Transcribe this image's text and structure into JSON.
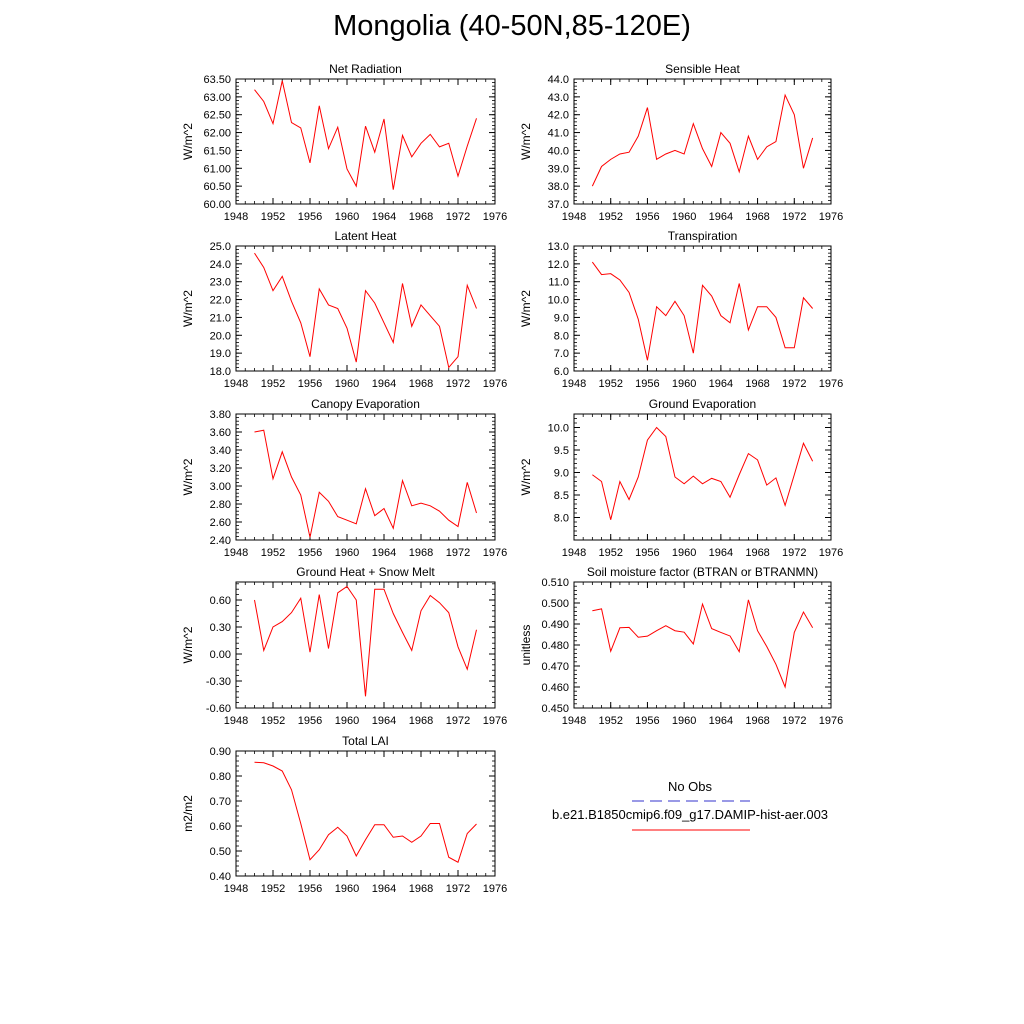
{
  "page_title": "Mongolia (40-50N,85-120E)",
  "legend": {
    "entries": [
      {
        "label": "No Obs",
        "color": "#3333cc",
        "dash": "dashed"
      },
      {
        "label": "b.e21.B1850cmip6.f09_g17.DAMIP-hist-aer.003",
        "color": "#ff0000",
        "dash": "solid"
      }
    ]
  },
  "chart_data": [
    {
      "type": "line",
      "title": "Net Radiation",
      "ylabel": "W/m^2",
      "xlim": [
        1948,
        1976
      ],
      "xticks": [
        1948,
        1952,
        1956,
        1960,
        1964,
        1968,
        1972,
        1976
      ],
      "xticklabels": [
        "1948",
        "1952",
        "1956",
        "1960",
        "1964",
        "1968",
        "1972",
        "1976"
      ],
      "ylim": [
        60.0,
        63.5
      ],
      "yticks": [
        60.0,
        60.5,
        61.0,
        61.5,
        62.0,
        62.5,
        63.0,
        63.5
      ],
      "yticklabels": [
        "60.00",
        "60.50",
        "61.00",
        "61.50",
        "62.00",
        "62.50",
        "63.00",
        "63.50"
      ],
      "x": [
        1950,
        1951,
        1952,
        1953,
        1954,
        1955,
        1956,
        1957,
        1958,
        1959,
        1960,
        1961,
        1962,
        1963,
        1964,
        1965,
        1966,
        1967,
        1968,
        1969,
        1970,
        1971,
        1972,
        1973,
        1974
      ],
      "series": [
        {
          "color": "#ff0000",
          "values": [
            63.2,
            62.87,
            62.25,
            63.45,
            62.28,
            62.13,
            61.15,
            62.75,
            61.55,
            62.15,
            60.98,
            60.5,
            62.18,
            61.45,
            62.38,
            60.4,
            61.92,
            61.32,
            61.7,
            61.95,
            61.6,
            61.7,
            60.78,
            61.62,
            62.4
          ]
        }
      ]
    },
    {
      "type": "line",
      "title": "Sensible Heat",
      "ylabel": "W/m^2",
      "xlim": [
        1948,
        1976
      ],
      "xticks": [
        1948,
        1952,
        1956,
        1960,
        1964,
        1968,
        1972,
        1976
      ],
      "xticklabels": [
        "1948",
        "1952",
        "1956",
        "1960",
        "1964",
        "1968",
        "1972",
        "1976"
      ],
      "ylim": [
        37.0,
        44.0
      ],
      "yticks": [
        37,
        38,
        39,
        40,
        41,
        42,
        43,
        44
      ],
      "yticklabels": [
        "37.0",
        "38.0",
        "39.0",
        "40.0",
        "41.0",
        "42.0",
        "43.0",
        "44.0"
      ],
      "x": [
        1950,
        1951,
        1952,
        1953,
        1954,
        1955,
        1956,
        1957,
        1958,
        1959,
        1960,
        1961,
        1962,
        1963,
        1964,
        1965,
        1966,
        1967,
        1968,
        1969,
        1970,
        1971,
        1972,
        1973,
        1974
      ],
      "series": [
        {
          "color": "#ff0000",
          "values": [
            38.0,
            39.1,
            39.5,
            39.8,
            39.9,
            40.8,
            42.4,
            39.5,
            39.8,
            40.0,
            39.8,
            41.5,
            40.1,
            39.1,
            41.0,
            40.4,
            38.8,
            40.8,
            39.5,
            40.2,
            40.5,
            43.1,
            42.0,
            39.0,
            40.7
          ]
        }
      ]
    },
    {
      "type": "line",
      "title": "Latent Heat",
      "ylabel": "W/m^2",
      "xlim": [
        1948,
        1976
      ],
      "xticks": [
        1948,
        1952,
        1956,
        1960,
        1964,
        1968,
        1972,
        1976
      ],
      "xticklabels": [
        "1948",
        "1952",
        "1956",
        "1960",
        "1964",
        "1968",
        "1972",
        "1976"
      ],
      "ylim": [
        18.0,
        25.0
      ],
      "yticks": [
        18,
        19,
        20,
        21,
        22,
        23,
        24,
        25
      ],
      "yticklabels": [
        "18.0",
        "19.0",
        "20.0",
        "21.0",
        "22.0",
        "23.0",
        "24.0",
        "25.0"
      ],
      "x": [
        1950,
        1951,
        1952,
        1953,
        1954,
        1955,
        1956,
        1957,
        1958,
        1959,
        1960,
        1961,
        1962,
        1963,
        1964,
        1965,
        1966,
        1967,
        1968,
        1969,
        1970,
        1971,
        1972,
        1973,
        1974
      ],
      "series": [
        {
          "color": "#ff0000",
          "values": [
            24.6,
            23.8,
            22.5,
            23.3,
            21.9,
            20.7,
            18.8,
            22.6,
            21.7,
            21.5,
            20.4,
            18.5,
            22.5,
            21.8,
            20.7,
            19.6,
            22.9,
            20.5,
            21.7,
            21.1,
            20.5,
            18.2,
            18.8,
            22.8,
            21.5
          ]
        }
      ]
    },
    {
      "type": "line",
      "title": "Transpiration",
      "ylabel": "W/m^2",
      "xlim": [
        1948,
        1976
      ],
      "xticks": [
        1948,
        1952,
        1956,
        1960,
        1964,
        1968,
        1972,
        1976
      ],
      "xticklabels": [
        "1948",
        "1952",
        "1956",
        "1960",
        "1964",
        "1968",
        "1972",
        "1976"
      ],
      "ylim": [
        6.0,
        13.0
      ],
      "yticks": [
        6,
        7,
        8,
        9,
        10,
        11,
        12,
        13
      ],
      "yticklabels": [
        "6.0",
        "7.0",
        "8.0",
        "9.0",
        "10.0",
        "11.0",
        "12.0",
        "13.0"
      ],
      "x": [
        1950,
        1951,
        1952,
        1953,
        1954,
        1955,
        1956,
        1957,
        1958,
        1959,
        1960,
        1961,
        1962,
        1963,
        1964,
        1965,
        1966,
        1967,
        1968,
        1969,
        1970,
        1971,
        1972,
        1973,
        1974
      ],
      "series": [
        {
          "color": "#ff0000",
          "values": [
            12.1,
            11.4,
            11.45,
            11.1,
            10.4,
            8.9,
            6.6,
            9.6,
            9.1,
            9.9,
            9.1,
            7.0,
            10.8,
            10.2,
            9.1,
            8.7,
            10.9,
            8.3,
            9.6,
            9.6,
            9.0,
            7.3,
            7.3,
            10.1,
            9.5
          ]
        }
      ]
    },
    {
      "type": "line",
      "title": "Canopy Evaporation",
      "ylabel": "W/m^2",
      "xlim": [
        1948,
        1976
      ],
      "xticks": [
        1948,
        1952,
        1956,
        1960,
        1964,
        1968,
        1972,
        1976
      ],
      "xticklabels": [
        "1948",
        "1952",
        "1956",
        "1960",
        "1964",
        "1968",
        "1972",
        "1976"
      ],
      "ylim": [
        2.4,
        3.8
      ],
      "yticks": [
        2.4,
        2.6,
        2.8,
        3.0,
        3.2,
        3.4,
        3.6,
        3.8
      ],
      "yticklabels": [
        "2.40",
        "2.60",
        "2.80",
        "3.00",
        "3.20",
        "3.40",
        "3.60",
        "3.80"
      ],
      "x": [
        1950,
        1951,
        1952,
        1953,
        1954,
        1955,
        1956,
        1957,
        1958,
        1959,
        1960,
        1961,
        1962,
        1963,
        1964,
        1965,
        1966,
        1967,
        1968,
        1969,
        1970,
        1971,
        1972,
        1973,
        1974
      ],
      "series": [
        {
          "color": "#ff0000",
          "values": [
            3.6,
            3.62,
            3.08,
            3.38,
            3.1,
            2.9,
            2.43,
            2.93,
            2.83,
            2.66,
            2.62,
            2.58,
            2.97,
            2.67,
            2.75,
            2.53,
            3.06,
            2.78,
            2.81,
            2.78,
            2.72,
            2.62,
            2.55,
            3.04,
            2.7
          ]
        }
      ]
    },
    {
      "type": "line",
      "title": "Ground Evaporation",
      "ylabel": "W/m^2",
      "xlim": [
        1948,
        1976
      ],
      "xticks": [
        1948,
        1952,
        1956,
        1960,
        1964,
        1968,
        1972,
        1976
      ],
      "xticklabels": [
        "1948",
        "1952",
        "1956",
        "1960",
        "1964",
        "1968",
        "1972",
        "1976"
      ],
      "ylim": [
        7.5,
        10.3
      ],
      "yticks": [
        8.0,
        8.5,
        9.0,
        9.5,
        10.0
      ],
      "yticklabels": [
        "8.0",
        "8.5",
        "9.0",
        "9.5",
        "10.0"
      ],
      "x": [
        1950,
        1951,
        1952,
        1953,
        1954,
        1955,
        1956,
        1957,
        1958,
        1959,
        1960,
        1961,
        1962,
        1963,
        1964,
        1965,
        1966,
        1967,
        1968,
        1969,
        1970,
        1971,
        1972,
        1973,
        1974
      ],
      "series": [
        {
          "color": "#ff0000",
          "values": [
            8.95,
            8.8,
            7.95,
            8.8,
            8.4,
            8.9,
            9.72,
            10.0,
            9.8,
            8.9,
            8.75,
            8.92,
            8.75,
            8.87,
            8.8,
            8.45,
            8.95,
            9.42,
            9.28,
            8.72,
            8.88,
            8.27,
            8.95,
            9.65,
            9.25
          ]
        }
      ]
    },
    {
      "type": "line",
      "title": "Ground Heat + Snow Melt",
      "ylabel": "W/m^2",
      "xlim": [
        1948,
        1976
      ],
      "xticks": [
        1948,
        1952,
        1956,
        1960,
        1964,
        1968,
        1972,
        1976
      ],
      "xticklabels": [
        "1948",
        "1952",
        "1956",
        "1960",
        "1964",
        "1968",
        "1972",
        "1976"
      ],
      "ylim": [
        -0.6,
        0.8
      ],
      "yticks": [
        -0.6,
        -0.3,
        0.0,
        0.3,
        0.6
      ],
      "yticklabels": [
        "-0.60",
        "-0.30",
        "0.00",
        "0.30",
        "0.60"
      ],
      "x": [
        1950,
        1951,
        1952,
        1953,
        1954,
        1955,
        1956,
        1957,
        1958,
        1959,
        1960,
        1961,
        1962,
        1963,
        1964,
        1965,
        1966,
        1967,
        1968,
        1969,
        1970,
        1971,
        1972,
        1973,
        1974
      ],
      "series": [
        {
          "color": "#ff0000",
          "values": [
            0.6,
            0.04,
            0.3,
            0.36,
            0.46,
            0.62,
            0.02,
            0.66,
            0.06,
            0.68,
            0.75,
            0.6,
            -0.47,
            0.72,
            0.72,
            0.45,
            0.24,
            0.04,
            0.48,
            0.65,
            0.57,
            0.46,
            0.08,
            -0.17,
            0.27
          ]
        }
      ]
    },
    {
      "type": "line",
      "title": "Soil moisture factor (BTRAN or BTRANMN)",
      "ylabel": "unitless",
      "xlim": [
        1948,
        1976
      ],
      "xticks": [
        1948,
        1952,
        1956,
        1960,
        1964,
        1968,
        1972,
        1976
      ],
      "xticklabels": [
        "1948",
        "1952",
        "1956",
        "1960",
        "1964",
        "1968",
        "1972",
        "1976"
      ],
      "ylim": [
        0.45,
        0.51
      ],
      "yticks": [
        0.45,
        0.46,
        0.47,
        0.48,
        0.49,
        0.5,
        0.51
      ],
      "yticklabels": [
        "0.450",
        "0.460",
        "0.470",
        "0.480",
        "0.490",
        "0.500",
        "0.510"
      ],
      "x": [
        1950,
        1951,
        1952,
        1953,
        1954,
        1955,
        1956,
        1957,
        1958,
        1959,
        1960,
        1961,
        1962,
        1963,
        1964,
        1965,
        1966,
        1967,
        1968,
        1969,
        1970,
        1971,
        1972,
        1973,
        1974
      ],
      "series": [
        {
          "color": "#ff0000",
          "values": [
            0.4963,
            0.4972,
            0.477,
            0.4882,
            0.4884,
            0.4837,
            0.4842,
            0.4868,
            0.4892,
            0.4868,
            0.4861,
            0.4805,
            0.4995,
            0.4878,
            0.486,
            0.4843,
            0.4768,
            0.5015,
            0.4868,
            0.4793,
            0.4708,
            0.46,
            0.486,
            0.4957,
            0.4882
          ]
        }
      ]
    },
    {
      "type": "line",
      "title": "Total LAI",
      "ylabel": "m2/m2",
      "xlim": [
        1948,
        1976
      ],
      "xticks": [
        1948,
        1952,
        1956,
        1960,
        1964,
        1968,
        1972,
        1976
      ],
      "xticklabels": [
        "1948",
        "1952",
        "1956",
        "1960",
        "1964",
        "1968",
        "1972",
        "1976"
      ],
      "ylim": [
        0.4,
        0.9
      ],
      "yticks": [
        0.4,
        0.5,
        0.6,
        0.7,
        0.8,
        0.9
      ],
      "yticklabels": [
        "0.40",
        "0.50",
        "0.60",
        "0.70",
        "0.80",
        "0.90"
      ],
      "x": [
        1950,
        1951,
        1952,
        1953,
        1954,
        1955,
        1956,
        1957,
        1958,
        1959,
        1960,
        1961,
        1962,
        1963,
        1964,
        1965,
        1966,
        1967,
        1968,
        1969,
        1970,
        1971,
        1972,
        1973,
        1974
      ],
      "series": [
        {
          "color": "#ff0000",
          "values": [
            0.855,
            0.853,
            0.84,
            0.82,
            0.745,
            0.61,
            0.465,
            0.505,
            0.565,
            0.595,
            0.56,
            0.48,
            0.545,
            0.605,
            0.605,
            0.555,
            0.56,
            0.535,
            0.56,
            0.61,
            0.61,
            0.475,
            0.455,
            0.57,
            0.608
          ]
        }
      ]
    }
  ]
}
